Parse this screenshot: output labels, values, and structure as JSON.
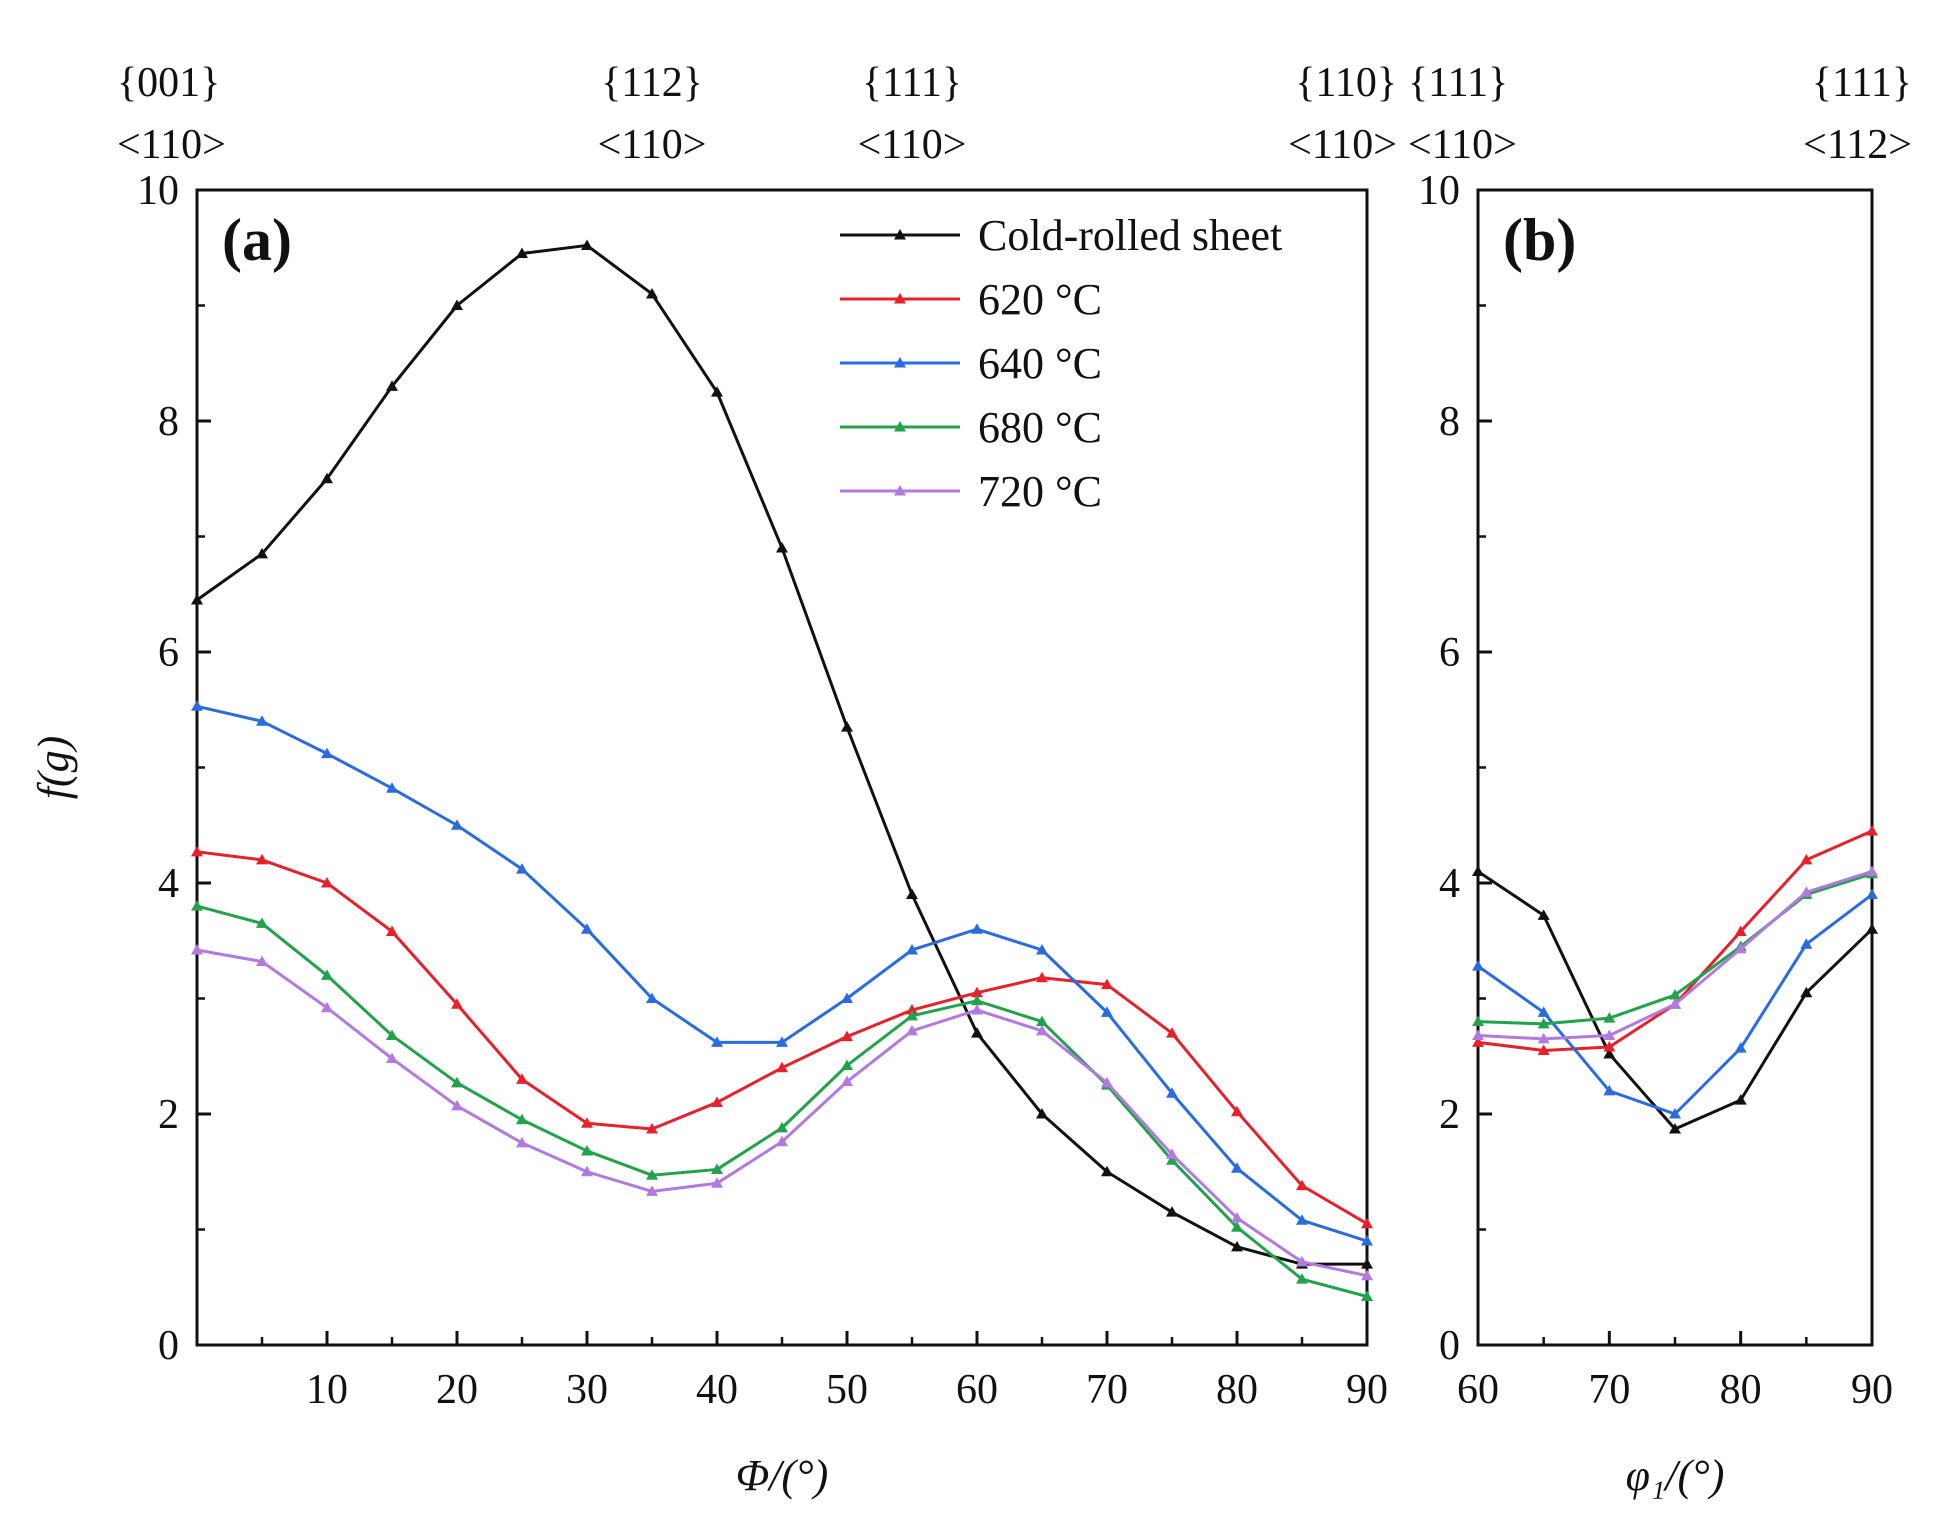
{
  "colors": {
    "Cold-rolled sheet": "#111111",
    "620 °C": "#e8202a",
    "640 °C": "#2a6ce0",
    "680 °C": "#22a24a",
    "720 °C": "#b27ae0"
  },
  "chart_data": [
    {
      "type": "line",
      "panel_label": "(a)",
      "xlabel": "Φ/(°)",
      "ylabel": "f(g)",
      "xlim": [
        0,
        90
      ],
      "ylim": [
        0,
        10
      ],
      "xticks": [
        10,
        20,
        30,
        40,
        50,
        60,
        70,
        80,
        90
      ],
      "yticks": [
        0,
        2,
        4,
        6,
        8,
        10
      ],
      "legend_position": "top-right",
      "texture_labels": [
        {
          "x": 0,
          "plane": "{001}",
          "direction": "<110>"
        },
        {
          "x": 35,
          "plane": "{112}",
          "direction": "<110>"
        },
        {
          "x": 55,
          "plane": "{111}",
          "direction": "<110>"
        },
        {
          "x": 90,
          "plane": "{110}",
          "direction": "<110>"
        }
      ],
      "x": [
        0,
        5,
        10,
        15,
        20,
        25,
        30,
        35,
        40,
        45,
        50,
        55,
        60,
        65,
        70,
        75,
        80,
        85,
        90
      ],
      "series": [
        {
          "name": "Cold-rolled sheet",
          "values": [
            6.45,
            6.85,
            7.5,
            8.3,
            9.0,
            9.45,
            9.52,
            9.1,
            8.25,
            6.9,
            5.35,
            3.9,
            2.7,
            2.0,
            1.5,
            1.15,
            0.85,
            0.7,
            0.7
          ]
        },
        {
          "name": "620 °C",
          "values": [
            4.27,
            4.2,
            4.0,
            3.58,
            2.95,
            2.3,
            1.92,
            1.87,
            2.1,
            2.4,
            2.67,
            2.9,
            3.05,
            3.18,
            3.12,
            2.7,
            2.02,
            1.38,
            1.05
          ]
        },
        {
          "name": "640 °C",
          "values": [
            5.53,
            5.4,
            5.12,
            4.82,
            4.5,
            4.12,
            3.6,
            3.0,
            2.62,
            2.62,
            3.0,
            3.42,
            3.6,
            3.42,
            2.88,
            2.18,
            1.53,
            1.08,
            0.9
          ]
        },
        {
          "name": "680 °C",
          "values": [
            3.8,
            3.65,
            3.2,
            2.68,
            2.27,
            1.95,
            1.68,
            1.47,
            1.52,
            1.88,
            2.42,
            2.85,
            2.98,
            2.8,
            2.25,
            1.6,
            1.02,
            0.57,
            0.42
          ]
        },
        {
          "name": "720 °C",
          "values": [
            3.42,
            3.32,
            2.92,
            2.48,
            2.07,
            1.75,
            1.5,
            1.33,
            1.4,
            1.76,
            2.28,
            2.72,
            2.9,
            2.72,
            2.27,
            1.65,
            1.1,
            0.72,
            0.6
          ]
        }
      ]
    },
    {
      "type": "line",
      "panel_label": "(b)",
      "xlabel": "φ₁/(°)",
      "ylabel": "",
      "xlim": [
        60,
        90
      ],
      "ylim": [
        0,
        10
      ],
      "xticks": [
        60,
        70,
        80,
        90
      ],
      "yticks": [
        0,
        2,
        4,
        6,
        8,
        10
      ],
      "texture_labels": [
        {
          "x": 60,
          "plane": "{111}",
          "direction": "<110>"
        },
        {
          "x": 90,
          "plane": "{111}",
          "direction": "<112>"
        }
      ],
      "x": [
        60,
        65,
        70,
        75,
        80,
        85,
        90
      ],
      "series": [
        {
          "name": "Cold-rolled sheet",
          "values": [
            4.1,
            3.72,
            2.52,
            1.87,
            2.12,
            3.05,
            3.6
          ]
        },
        {
          "name": "620 °C",
          "values": [
            2.62,
            2.55,
            2.58,
            2.95,
            3.58,
            4.2,
            4.45
          ]
        },
        {
          "name": "640 °C",
          "values": [
            3.28,
            2.88,
            2.2,
            2.0,
            2.57,
            3.47,
            3.9
          ]
        },
        {
          "name": "680 °C",
          "values": [
            2.8,
            2.78,
            2.83,
            3.03,
            3.45,
            3.9,
            4.08
          ]
        },
        {
          "name": "720 °C",
          "values": [
            2.68,
            2.65,
            2.68,
            2.95,
            3.43,
            3.92,
            4.1
          ]
        }
      ]
    }
  ]
}
